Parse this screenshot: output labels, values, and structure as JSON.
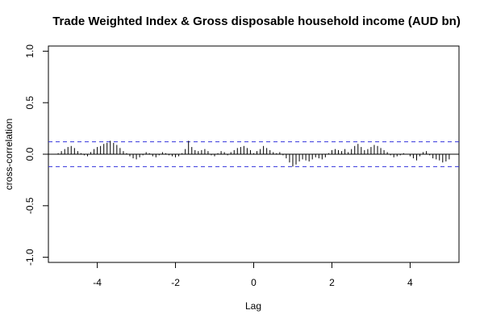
{
  "chart_data": {
    "type": "bar",
    "title": "Trade Weighted Index & Gross disposable household income (AUD bn)",
    "xlabel": "Lag",
    "ylabel": "cross-correlation",
    "xlim": [
      -5.25,
      5.25
    ],
    "ylim": [
      -1.05,
      1.05
    ],
    "x_ticks": [
      -4,
      -2,
      0,
      2,
      4
    ],
    "y_ticks": [
      -1.0,
      -0.5,
      0.0,
      0.5,
      1.0
    ],
    "x_tick_labels": [
      "-4",
      "-2",
      "0",
      "2",
      "4"
    ],
    "y_tick_labels": [
      "-1.0",
      "-0.5",
      "0.0",
      "0.5",
      "1.0"
    ],
    "confidence_bound": 0.12,
    "grid": false,
    "colors": {
      "bars": "#000000",
      "confidence": "#3333dd",
      "frame": "#000000"
    },
    "lags": [
      -5,
      -4.917,
      -4.833,
      -4.75,
      -4.667,
      -4.583,
      -4.5,
      -4.417,
      -4.333,
      -4.25,
      -4.167,
      -4.083,
      -4,
      -3.917,
      -3.833,
      -3.75,
      -3.667,
      -3.583,
      -3.5,
      -3.417,
      -3.333,
      -3.25,
      -3.167,
      -3.083,
      -3,
      -2.917,
      -2.833,
      -2.75,
      -2.667,
      -2.583,
      -2.5,
      -2.417,
      -2.333,
      -2.25,
      -2.167,
      -2.083,
      -2,
      -1.917,
      -1.833,
      -1.75,
      -1.667,
      -1.583,
      -1.5,
      -1.417,
      -1.333,
      -1.25,
      -1.167,
      -1.083,
      -1,
      -0.917,
      -0.833,
      -0.75,
      -0.667,
      -0.583,
      -0.5,
      -0.417,
      -0.333,
      -0.25,
      -0.167,
      -0.083,
      0,
      0.083,
      0.167,
      0.25,
      0.333,
      0.417,
      0.5,
      0.583,
      0.667,
      0.75,
      0.833,
      0.917,
      1,
      1.083,
      1.167,
      1.25,
      1.333,
      1.417,
      1.5,
      1.583,
      1.667,
      1.75,
      1.833,
      1.917,
      2,
      2.083,
      2.167,
      2.25,
      2.333,
      2.417,
      2.5,
      2.583,
      2.667,
      2.75,
      2.833,
      2.917,
      3,
      3.083,
      3.167,
      3.25,
      3.333,
      3.417,
      3.5,
      3.583,
      3.667,
      3.75,
      3.833,
      3.917,
      4,
      4.083,
      4.167,
      4.25,
      4.333,
      4.417,
      4.5,
      4.583,
      4.667,
      4.75,
      4.833,
      4.917,
      5
    ],
    "values": [
      0.01,
      0.03,
      0.05,
      0.07,
      0.08,
      0.06,
      0.03,
      0.01,
      -0.01,
      -0.02,
      0.02,
      0.05,
      0.07,
      0.08,
      0.1,
      0.11,
      0.13,
      0.11,
      0.09,
      0.06,
      0.03,
      0.01,
      -0.02,
      -0.04,
      -0.05,
      -0.03,
      -0.01,
      0.02,
      0.01,
      -0.02,
      -0.03,
      -0.01,
      0.02,
      0.01,
      -0.01,
      -0.02,
      -0.03,
      -0.02,
      0.01,
      0.05,
      0.13,
      0.07,
      0.04,
      0.03,
      0.04,
      0.05,
      0.03,
      -0.01,
      -0.02,
      0.01,
      0.03,
      0.02,
      -0.01,
      0.02,
      0.04,
      0.06,
      0.07,
      0.08,
      0.06,
      0.04,
      0.01,
      0.03,
      0.05,
      0.08,
      0.06,
      0.04,
      0.02,
      0.01,
      0.02,
      -0.01,
      -0.04,
      -0.08,
      -0.12,
      -0.1,
      -0.07,
      -0.05,
      -0.06,
      -0.07,
      -0.05,
      -0.03,
      -0.04,
      -0.05,
      -0.03,
      0.01,
      0.04,
      0.05,
      0.04,
      0.03,
      0.05,
      0.02,
      0.05,
      0.08,
      0.1,
      0.07,
      0.04,
      0.05,
      0.07,
      0.09,
      0.08,
      0.06,
      0.04,
      0.02,
      -0.01,
      -0.03,
      -0.02,
      -0.01,
      0.01,
      0.0,
      -0.02,
      -0.04,
      -0.06,
      -0.02,
      0.02,
      0.03,
      -0.01,
      -0.04,
      -0.05,
      -0.06,
      -0.08,
      -0.07,
      -0.05
    ]
  }
}
